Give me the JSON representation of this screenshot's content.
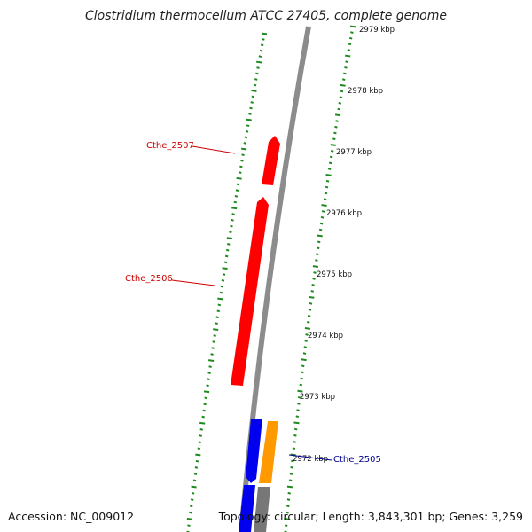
{
  "title": "Clostridium thermocellum ATCC 27405, complete genome",
  "footer": {
    "accession": "Accession: NC_009012",
    "summary": "Topology: circular; Length: 3,843,301 bp; Genes: 3,259"
  },
  "colors": {
    "backbone": "#8c8c8c",
    "tick": "#1e8a1e",
    "forward_gene": "#ff0000",
    "forward_label": "#cc0000",
    "reverse_gene": "#0000ee",
    "reverse_label": "#00008b",
    "orange_gene": "#ff9900",
    "gray_gene": "#777777"
  },
  "scale": {
    "labels": [
      "2979 kbp",
      "2978 kbp",
      "2977 kbp",
      "2976 kbp",
      "2975 kbp",
      "2974 kbp",
      "2973 kbp",
      "2972 kbp"
    ]
  },
  "genes": [
    {
      "name": "Cthe_2507",
      "strand": "+",
      "color": "red"
    },
    {
      "name": "Cthe_2506",
      "strand": "+",
      "color": "red"
    },
    {
      "name": "Cthe_2505",
      "strand": "-",
      "color": "orange"
    }
  ],
  "unlabeled_features": [
    {
      "color": "blue",
      "strand": "-"
    },
    {
      "color": "blue",
      "strand": "-"
    },
    {
      "color": "gray",
      "strand": "-"
    }
  ]
}
